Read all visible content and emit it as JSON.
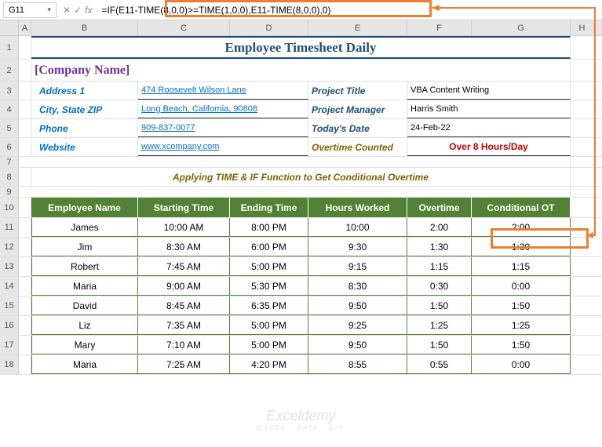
{
  "nameBox": "G11",
  "formula": "=IF(E11-TIME(8,0,0)>=TIME(1,0,0),E11-TIME(8,0,0),0)",
  "cols": [
    "A",
    "B",
    "C",
    "D",
    "E",
    "F",
    "G",
    "H"
  ],
  "title": "Employee Timesheet Daily",
  "company": "[Company Name]",
  "info": {
    "address_lbl": "Address 1",
    "address_val": "474 Roosevelt Wilson Lane",
    "city_lbl": "City, State  ZIP",
    "city_val": "Long Beach, California, 90808",
    "phone_lbl": "Phone",
    "phone_val": "909-837-0077",
    "web_lbl": "Website",
    "web_val": "www.xcompany.com",
    "proj_title_lbl": "Project Title",
    "proj_title_val": "VBA Content Writing",
    "pm_lbl": "Project Manager",
    "pm_val": "Harris Smith",
    "date_lbl": "Today's Date",
    "date_val": "24-Feb-22",
    "ot_lbl": "Overtime Counted",
    "ot_val": "Over 8 Hours/Day"
  },
  "subtitle": "Applying TIME & IF Function to Get Conditional Overtime",
  "headers": [
    "Employee Name",
    "Starting Time",
    "Ending Time",
    "Hours Worked",
    "Overtime",
    "Conditional OT"
  ],
  "rows": [
    {
      "r": 11,
      "name": "James",
      "start": "10:00 AM",
      "end": "8:00 PM",
      "hours": "10:00",
      "ot": "2:00",
      "cot": "2:00"
    },
    {
      "r": 12,
      "name": "Jim",
      "start": "8:30 AM",
      "end": "6:00 PM",
      "hours": "9:30",
      "ot": "1:30",
      "cot": "1:30"
    },
    {
      "r": 13,
      "name": "Robert",
      "start": "7:45 AM",
      "end": "5:00 PM",
      "hours": "9:15",
      "ot": "1:15",
      "cot": "1:15"
    },
    {
      "r": 14,
      "name": "Maria",
      "start": "9:00 AM",
      "end": "5:30 PM",
      "hours": "8:30",
      "ot": "0:30",
      "cot": "0:00"
    },
    {
      "r": 15,
      "name": "David",
      "start": "8:45 AM",
      "end": "6:35 PM",
      "hours": "9:50",
      "ot": "1:50",
      "cot": "1:50"
    },
    {
      "r": 16,
      "name": "Liz",
      "start": "7:35 AM",
      "end": "5:00 PM",
      "hours": "9:25",
      "ot": "1:25",
      "cot": "1:25"
    },
    {
      "r": 17,
      "name": "Mary",
      "start": "7:10 AM",
      "end": "5:00 PM",
      "hours": "9:50",
      "ot": "1:50",
      "cot": "1:50"
    },
    {
      "r": 18,
      "name": "Maria",
      "start": "7:25 AM",
      "end": "4:20 PM",
      "hours": "8:55",
      "ot": "0:55",
      "cot": "0:00"
    }
  ],
  "watermark": {
    "name": "Exceldemy",
    "tag": "EXCEL · DATA · DIY"
  },
  "colors": {
    "header_bg": "#548235",
    "title_color": "#1f4e79",
    "callout": "#ed7d31",
    "company": "#7030a0",
    "link": "#0070c0",
    "ot_label": "#806000",
    "ot_value": "#c00000"
  }
}
